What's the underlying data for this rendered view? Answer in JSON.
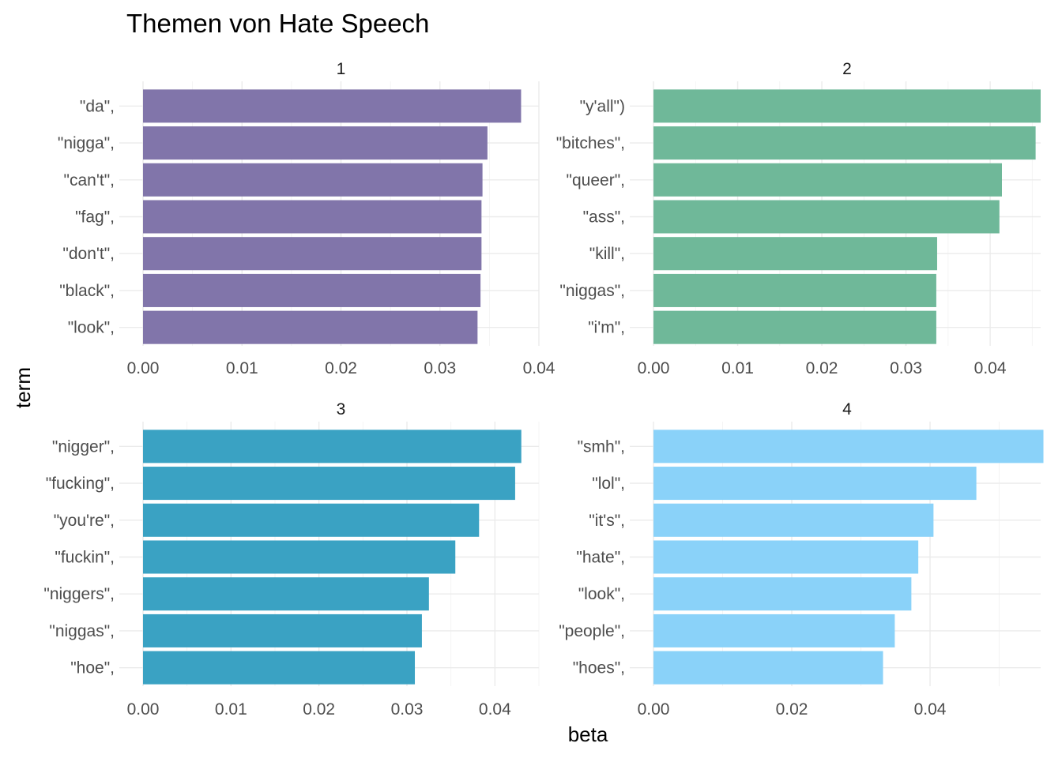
{
  "chart_data": {
    "type": "bar",
    "orientation": "horizontal",
    "title": "Themen von Hate Speech",
    "xlabel": "beta",
    "ylabel": "term",
    "grid": true,
    "panels": [
      {
        "name": "1",
        "color": "#8175AA",
        "xlim": [
          0,
          0.04
        ],
        "xticks": [
          "0.00",
          "0.01",
          "0.02",
          "0.03",
          "0.04"
        ],
        "xtick_values": [
          0,
          0.01,
          0.02,
          0.03,
          0.04
        ],
        "categories": [
          "\"da\",",
          "\"nigga\",",
          "\"can't\",",
          "\"fag\",",
          "\"don't\",",
          "\"black\",",
          "\"look\","
        ],
        "values": [
          0.0382,
          0.0348,
          0.0343,
          0.0342,
          0.0342,
          0.0341,
          0.0338
        ]
      },
      {
        "name": "2",
        "color": "#6FB899",
        "xlim": [
          0,
          0.046
        ],
        "xticks": [
          "0.00",
          "0.01",
          "0.02",
          "0.03",
          "0.04"
        ],
        "xtick_values": [
          0,
          0.01,
          0.02,
          0.03,
          0.04
        ],
        "categories": [
          "\"y'all\")",
          "\"bitches\",",
          "\"queer\",",
          "\"ass\",",
          "\"kill\",",
          "\"niggas\",",
          "\"i'm\","
        ],
        "values": [
          0.046,
          0.0454,
          0.0414,
          0.0411,
          0.0337,
          0.0336,
          0.0336
        ]
      },
      {
        "name": "3",
        "color": "#3AA2C3",
        "xlim": [
          0,
          0.045
        ],
        "xticks": [
          "0.00",
          "0.01",
          "0.02",
          "0.03",
          "0.04"
        ],
        "xtick_values": [
          0,
          0.01,
          0.02,
          0.03,
          0.04
        ],
        "categories": [
          "\"nigger\",",
          "\"fucking\",",
          "\"you're\",",
          "\"fuckin\",",
          "\"niggers\",",
          "\"niggas\",",
          "\"hoe\","
        ],
        "values": [
          0.043,
          0.0423,
          0.0382,
          0.0355,
          0.0325,
          0.0317,
          0.0309
        ]
      },
      {
        "name": "4",
        "color": "#8AD2F9",
        "xlim": [
          0,
          0.056
        ],
        "xticks": [
          "0.00",
          "0.02",
          "0.04"
        ],
        "xtick_values": [
          0,
          0.02,
          0.04
        ],
        "categories": [
          "\"smh\",",
          "\"lol\",",
          "\"it's\",",
          "\"hate\",",
          "\"look\",",
          "\"people\",",
          "\"hoes\","
        ],
        "values": [
          0.0564,
          0.0467,
          0.0405,
          0.0383,
          0.0373,
          0.0349,
          0.0332
        ]
      }
    ]
  }
}
